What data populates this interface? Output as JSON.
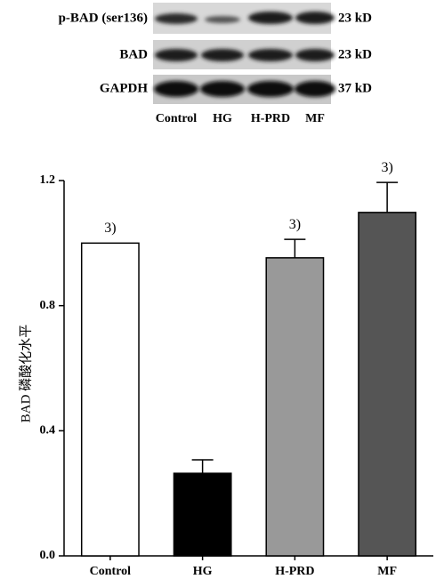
{
  "blot": {
    "rows": [
      {
        "label": "p-BAD (ser136)",
        "size": "23 kD"
      },
      {
        "label": "BAD",
        "size": "23 kD"
      },
      {
        "label": "GAPDH",
        "size": "37 kD"
      }
    ],
    "lanes": [
      "Control",
      "HG",
      "H-PRD",
      "MF"
    ]
  },
  "chart_data": {
    "type": "bar",
    "ylabel": "BAD 磷酸化水平",
    "categories": [
      "Control",
      "HG",
      "H-PRD",
      "MF"
    ],
    "values": [
      1.0,
      0.264,
      0.953,
      1.098
    ],
    "errors": [
      null,
      0.043,
      0.059,
      0.096
    ],
    "colors": [
      "#ffffff",
      "#000000",
      "#999999",
      "#555555"
    ],
    "significance": [
      "3)",
      null,
      "3)",
      "3)"
    ],
    "ylim": [
      0,
      1.2
    ],
    "yticks": [
      {
        "value": 0,
        "label": "0.0"
      },
      0.4,
      0.8,
      1.2
    ]
  }
}
